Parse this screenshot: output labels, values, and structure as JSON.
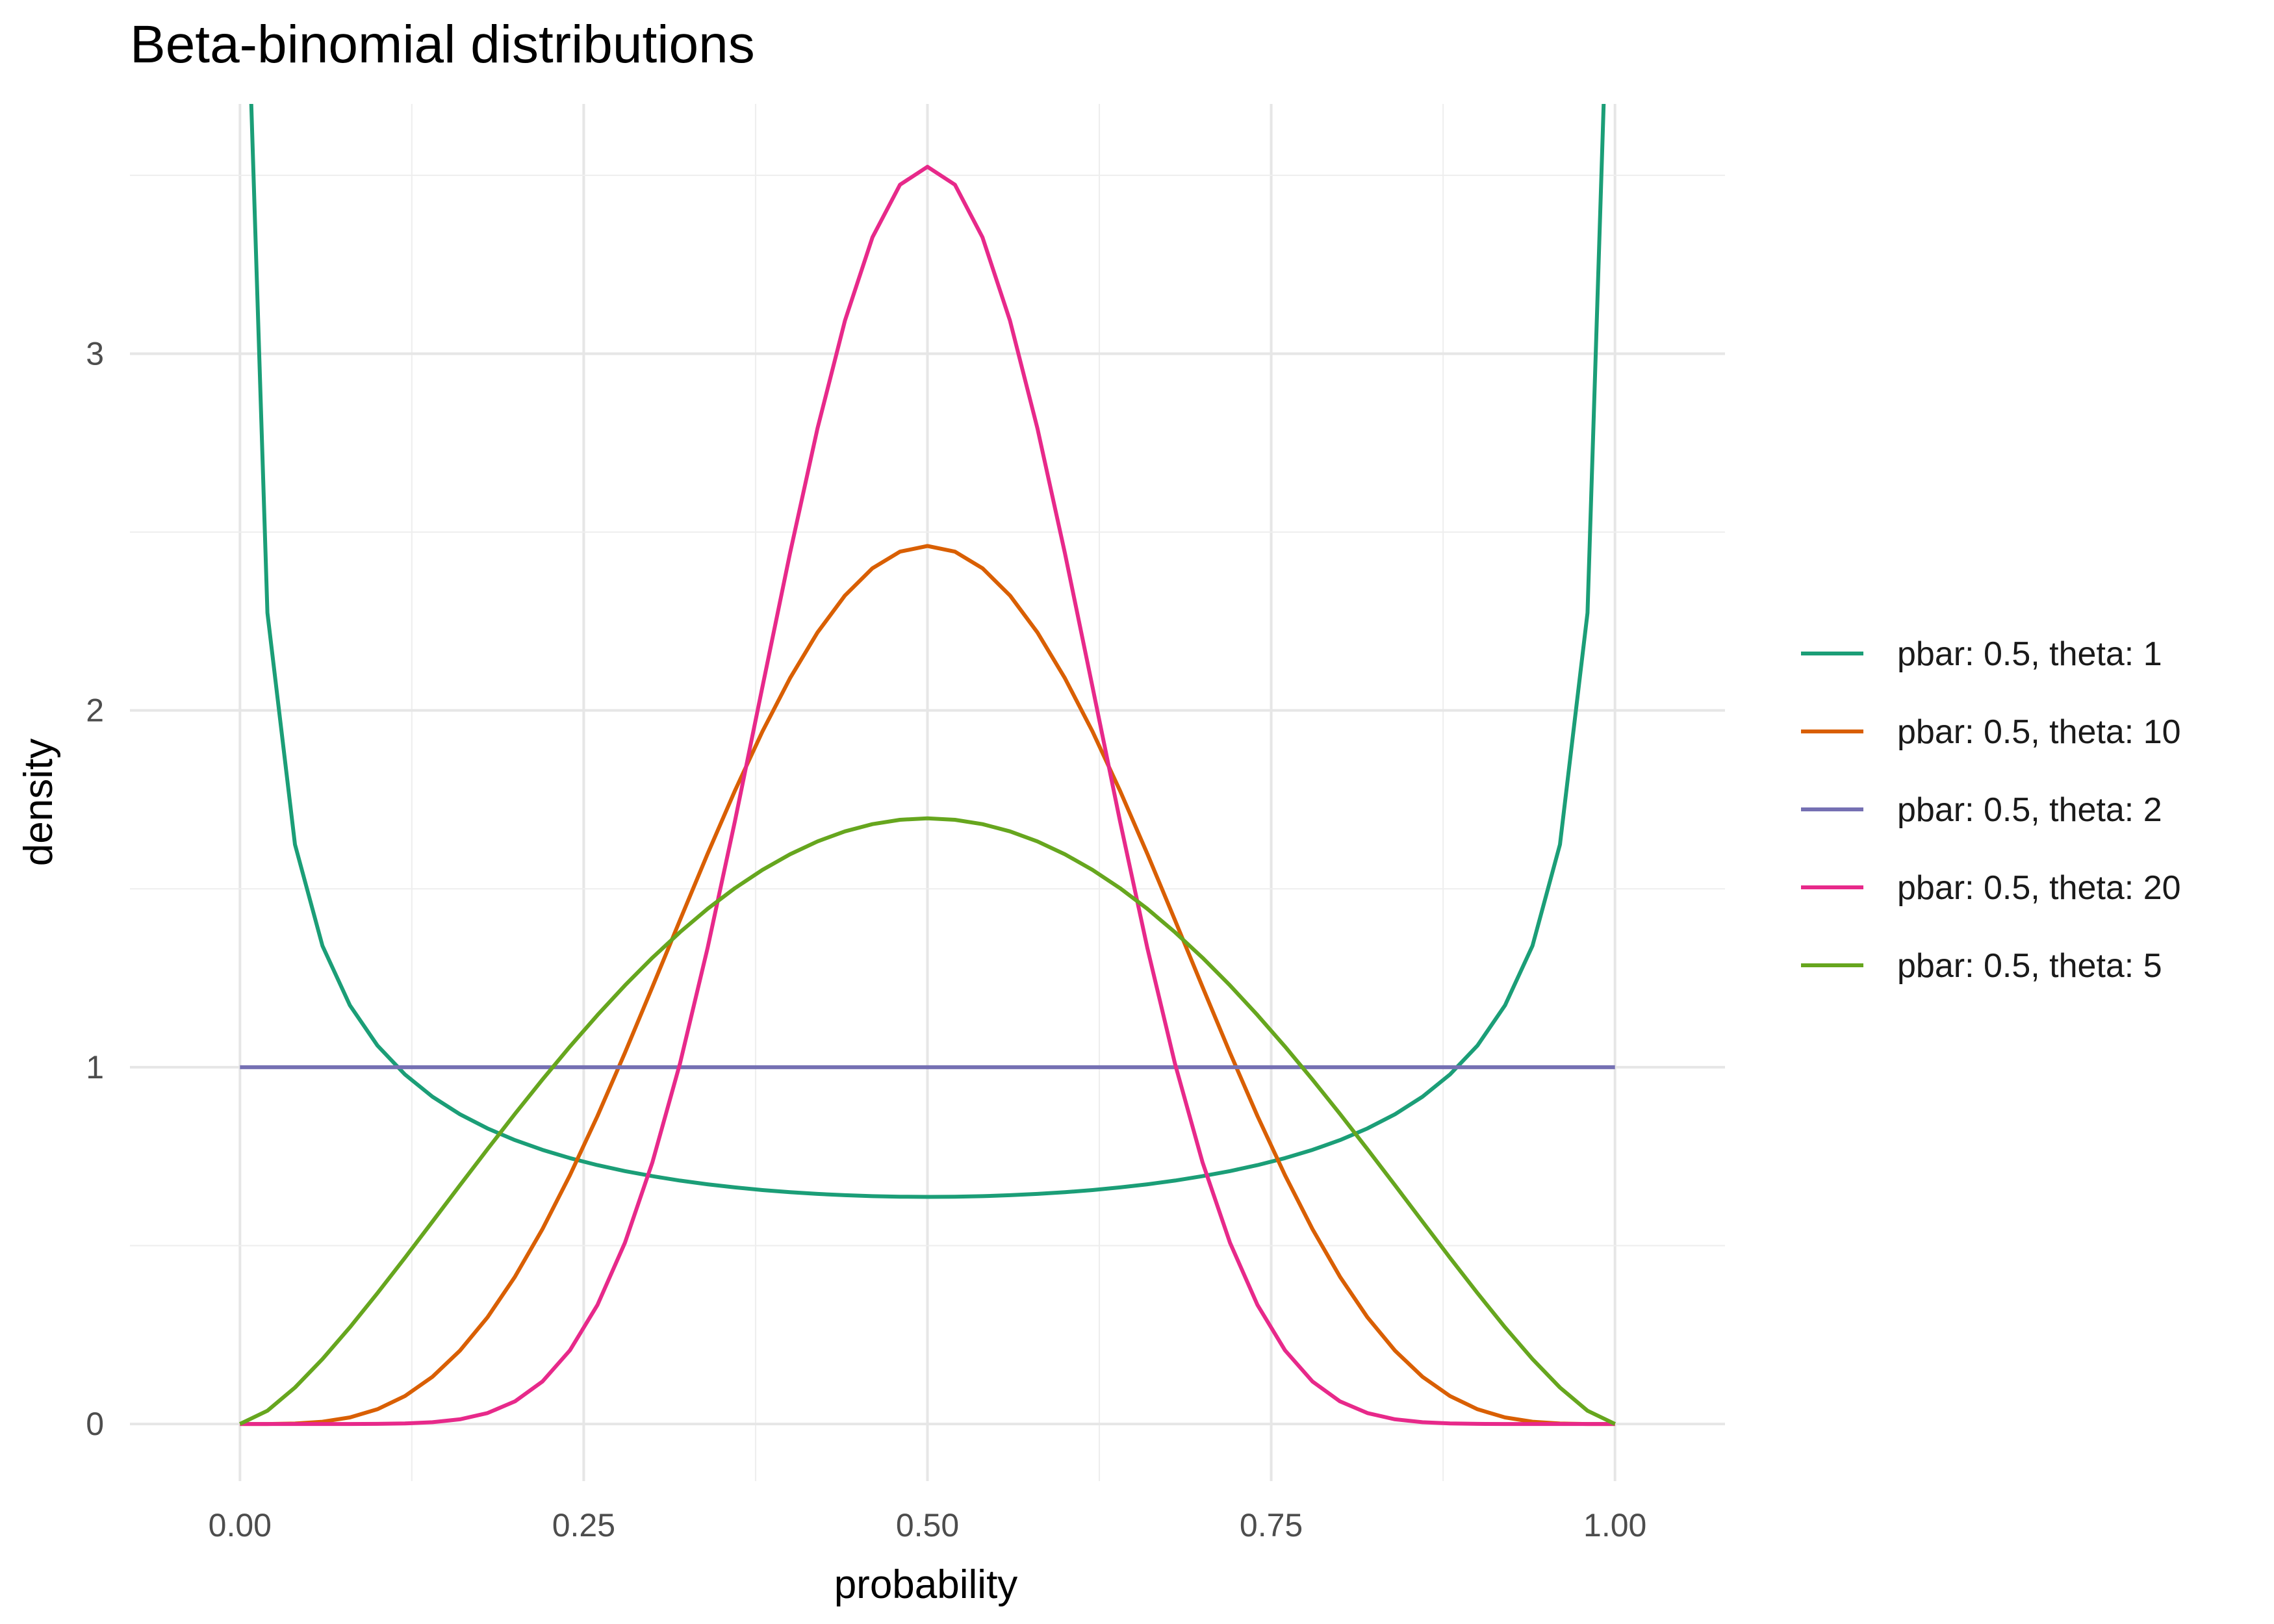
{
  "chart_data": {
    "type": "line",
    "title": "Beta-binomial distributions",
    "xlabel": "probability",
    "ylabel": "density",
    "xlim": [
      -0.08,
      1.08
    ],
    "ylim": [
      -0.16,
      3.7
    ],
    "x_ticks": [
      0,
      0.25,
      0.5,
      0.75,
      1
    ],
    "x_tick_labels": [
      "0.00",
      "0.25",
      "0.50",
      "0.75",
      "1.00"
    ],
    "y_ticks": [
      0,
      1,
      2,
      3
    ],
    "y_tick_labels": [
      "0",
      "1",
      "2",
      "3"
    ],
    "grid": true,
    "legend_position": "right",
    "series": [
      {
        "name": "pbar: 0.5, theta: 1",
        "color": "#1b9e77",
        "alpha": 0.5,
        "beta": 0.5
      },
      {
        "name": "pbar: 0.5, theta: 10",
        "color": "#d95f02",
        "alpha": 5,
        "beta": 5
      },
      {
        "name": "pbar: 0.5, theta: 2",
        "color": "#7570b3",
        "alpha": 1,
        "beta": 1
      },
      {
        "name": "pbar: 0.5, theta: 20",
        "color": "#e7298a",
        "alpha": 10,
        "beta": 10
      },
      {
        "name": "pbar: 0.5, theta: 5",
        "color": "#66a61e",
        "alpha": 2.5,
        "beta": 2.5
      }
    ],
    "x_grid_points": 51
  }
}
